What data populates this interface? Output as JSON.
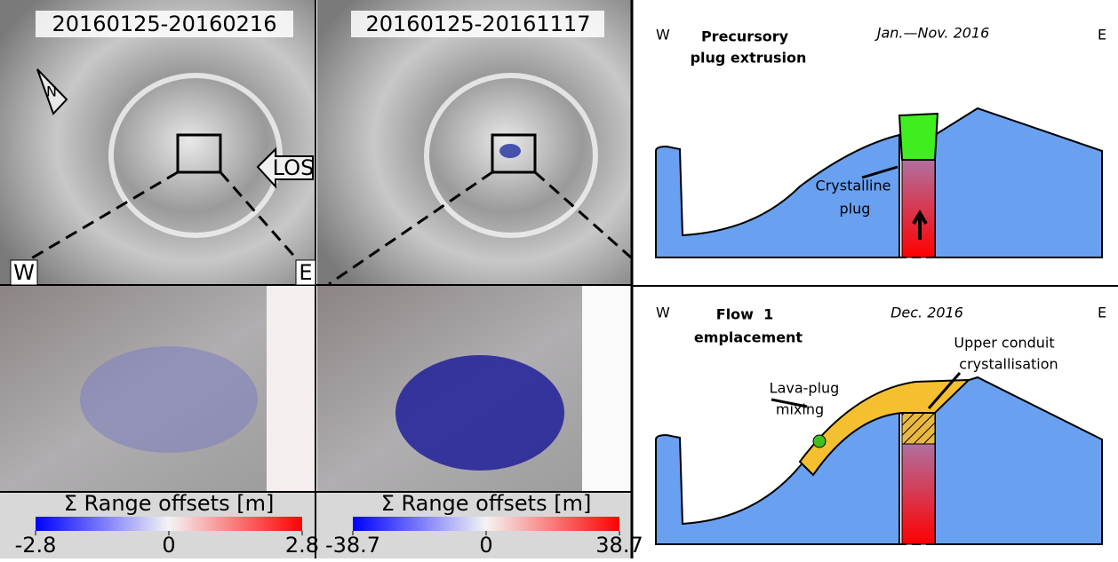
{
  "images": [
    {
      "date": "20160125-20160216",
      "north": "N",
      "los": "LOS",
      "west": "W",
      "east": "E",
      "colorbar": {
        "label": "Σ Range offsets [m]",
        "ticks": [
          -2.8,
          0,
          2.8
        ]
      }
    },
    {
      "date": "20160125-20161117",
      "colorbar": {
        "label": "Σ Range offsets [m]",
        "ticks": [
          -38.7,
          0,
          38.7
        ]
      }
    }
  ],
  "diagrams": [
    {
      "west": "W",
      "east": "E",
      "title": [
        "Precursory",
        "plug extrusion"
      ],
      "period": "Jan.—Nov. 2016",
      "annotations": [
        "Crystalline",
        "plug"
      ]
    },
    {
      "west": "W",
      "east": "E",
      "title": [
        "Flow  1",
        "emplacement"
      ],
      "period": "Dec. 2016",
      "annotations": [
        "Upper conduit",
        "crystallisation",
        "Lava-plug",
        "mixing"
      ]
    }
  ]
}
